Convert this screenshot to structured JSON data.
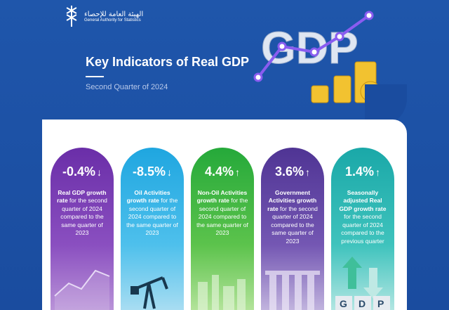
{
  "logo": {
    "ar": "الهيئة العامة للإحصاء",
    "en": "General Authority for Statistics"
  },
  "header": {
    "title": "Key Indicators of Real GDP",
    "subtitle": "Second Quarter of 2024",
    "badge": "GDP"
  },
  "cards": [
    {
      "value": "-0.4%",
      "arrow": "↓",
      "bold": "Real GDP growth rate",
      "text": " for the second quarter of 2024 compared to the same quarter of 2023"
    },
    {
      "value": "-8.5%",
      "arrow": "↓",
      "bold": "Oil Activities growth rate",
      "text": " for the second quarter of 2024 compared to the same quarter of 2023"
    },
    {
      "value": "4.4%",
      "arrow": "↑",
      "bold": "Non-Oil Activities growth rate",
      "text": " for the second quarter of 2024 compared to the same quarter of 2023"
    },
    {
      "value": "3.6%",
      "arrow": "↑",
      "bold": "Government Activities growth rate",
      "text": " for the second quarter of 2024 compared to the same quarter of 2023"
    },
    {
      "value": "1.4%",
      "arrow": "↑",
      "bold": "Seasonally adjusted Real GDP growth rate",
      "text": " for the second quarter of 2024 compared to the previous quarter"
    }
  ],
  "gdp_tiles": [
    "G",
    "D",
    "P"
  ],
  "colors": {
    "bg": "#1a4c9f",
    "purple": "#6a2ea8",
    "blue": "#1fa6e0",
    "green": "#25a93a",
    "violet": "#4f3494",
    "teal": "#1aa8a8"
  }
}
